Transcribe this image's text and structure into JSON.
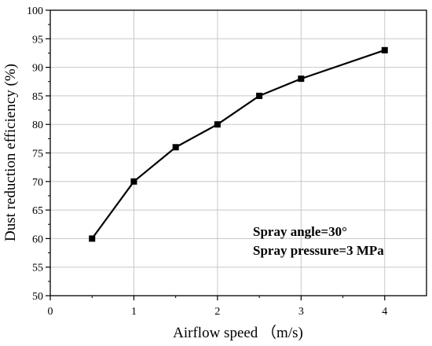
{
  "chart_data": {
    "type": "line",
    "title": "",
    "xlabel": "Airflow speed （m/s)",
    "ylabel": "Dust reduction efficiency (%)",
    "xlim": [
      0,
      4.5
    ],
    "ylim": [
      50,
      100
    ],
    "x_ticks": [
      0,
      1,
      2,
      3,
      4
    ],
    "y_ticks": [
      50,
      55,
      60,
      65,
      70,
      75,
      80,
      85,
      90,
      95,
      100
    ],
    "grid": true,
    "series": [
      {
        "x": [
          0.5,
          1,
          1.5,
          2,
          2.5,
          3,
          4
        ],
        "values": [
          60,
          70,
          76,
          80,
          85,
          88,
          93
        ],
        "marker": "square",
        "color": "#000000"
      }
    ],
    "annotations": [
      "Spray angle=30°",
      "Spray pressure=3 MPa"
    ]
  }
}
